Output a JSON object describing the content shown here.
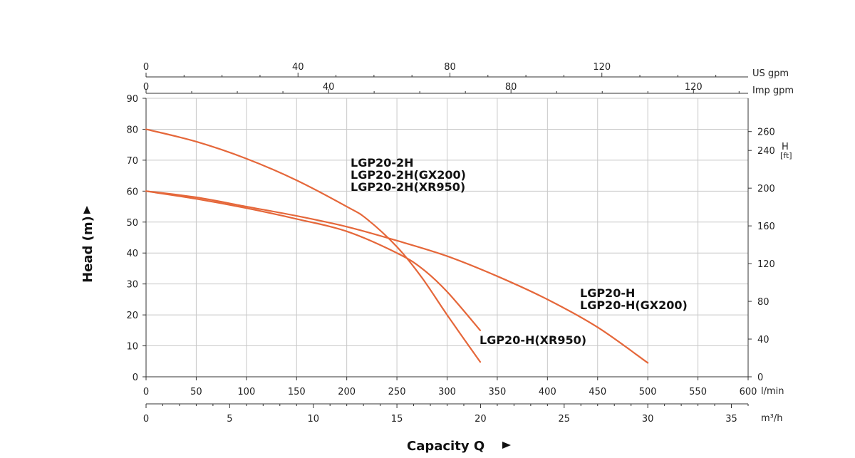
{
  "chart_data": {
    "type": "line",
    "title": "",
    "ylabel": "Head (m)",
    "xlabel": "Capacity Q",
    "x_unit_primary": "l/min",
    "x_unit_secondary": "m³/h",
    "x_unit_us": "US gpm",
    "x_unit_imp": "Imp gpm",
    "y_unit_right": "H",
    "y_unit_right_sub": "[ft]",
    "xlim_lmin": [
      0,
      600
    ],
    "ylim_m": [
      0,
      90
    ],
    "grid": true,
    "x_ticks_lmin": [
      0,
      50,
      100,
      150,
      200,
      250,
      300,
      350,
      400,
      450,
      500,
      550,
      600
    ],
    "x_ticks_m3h": [
      0,
      5,
      10,
      15,
      20,
      25,
      30,
      35
    ],
    "x_ticks_usgpm": [
      0,
      40,
      80,
      120
    ],
    "x_ticks_impgpm": [
      0,
      40,
      80,
      120
    ],
    "y_ticks_m": [
      0,
      10,
      20,
      30,
      40,
      50,
      60,
      70,
      80,
      90
    ],
    "y_ticks_ft": [
      0,
      40,
      80,
      120,
      160,
      200,
      240,
      260
    ],
    "curve_color": "#e5673a",
    "labels": {
      "lgp20_2h": [
        "LGP20-2H",
        "LGP20-2H(GX200)",
        "LGP20-2H(XR950)"
      ],
      "lgp20_h": [
        "LGP20-H",
        "LGP20-H(GX200)"
      ],
      "lgp20_h_xr950": "LGP20-H(XR950)"
    },
    "series": [
      {
        "x": [
          0,
          50,
          100,
          150,
          200,
          220,
          250,
          275,
          300,
          333
        ],
        "y": [
          80,
          76,
          70.5,
          63.5,
          55,
          51,
          42,
          32,
          20,
          4.8
        ]
      },
      {
        "x": [
          0,
          50,
          100,
          150,
          200,
          250,
          275,
          300,
          333
        ],
        "y": [
          60,
          57.5,
          54.5,
          51,
          47,
          40,
          35,
          27.5,
          15
        ]
      },
      {
        "x": [
          0,
          50,
          100,
          150,
          200,
          250,
          300,
          350,
          400,
          450,
          500
        ],
        "y": [
          60,
          58,
          55,
          52,
          48.5,
          44,
          39,
          32.5,
          25,
          16,
          4.5
        ]
      }
    ]
  }
}
